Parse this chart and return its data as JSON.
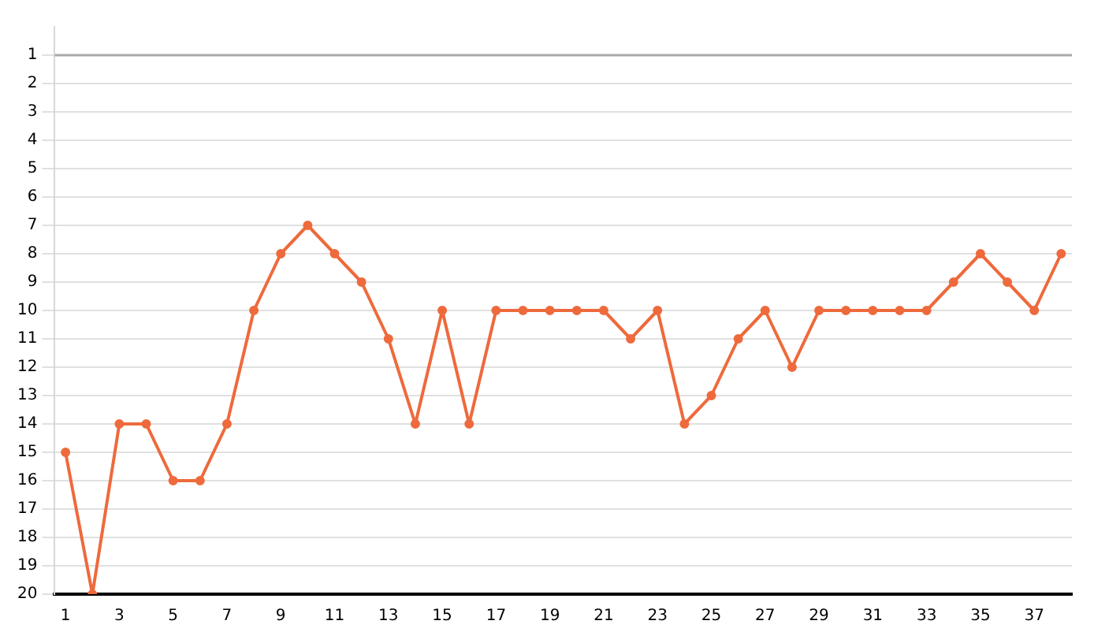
{
  "chart_data": {
    "type": "line",
    "x": [
      1,
      2,
      3,
      4,
      5,
      6,
      7,
      8,
      9,
      10,
      11,
      12,
      13,
      14,
      15,
      16,
      17,
      18,
      19,
      20,
      21,
      22,
      23,
      24,
      25,
      26,
      27,
      28,
      29,
      30,
      31,
      32,
      33,
      34,
      35,
      36,
      37,
      38
    ],
    "series": [
      {
        "color": "#ee6a3c",
        "values": [
          15,
          20,
          14,
          14,
          16,
          16,
          14,
          10,
          8,
          7,
          8,
          9,
          11,
          14,
          10,
          14,
          10,
          10,
          10,
          10,
          10,
          11,
          10,
          14,
          13,
          11,
          10,
          12,
          10,
          10,
          10,
          10,
          10,
          9,
          8,
          9,
          10,
          8
        ]
      }
    ],
    "xlim": [
      0.6,
      38.4
    ],
    "xticks": [
      1,
      3,
      5,
      7,
      9,
      11,
      13,
      15,
      17,
      19,
      21,
      23,
      25,
      27,
      29,
      31,
      33,
      35,
      37
    ],
    "ylim": [
      20,
      0
    ],
    "yticks": [
      1,
      2,
      3,
      4,
      5,
      6,
      7,
      8,
      9,
      10,
      11,
      12,
      13,
      14,
      15,
      16,
      17,
      18,
      19,
      20
    ],
    "ref_lines": [
      {
        "axis": "y",
        "value": 1,
        "color": "#aaaaaa"
      }
    ],
    "grid": "y",
    "legend": false,
    "marker": "circle",
    "line_style": "solid"
  }
}
